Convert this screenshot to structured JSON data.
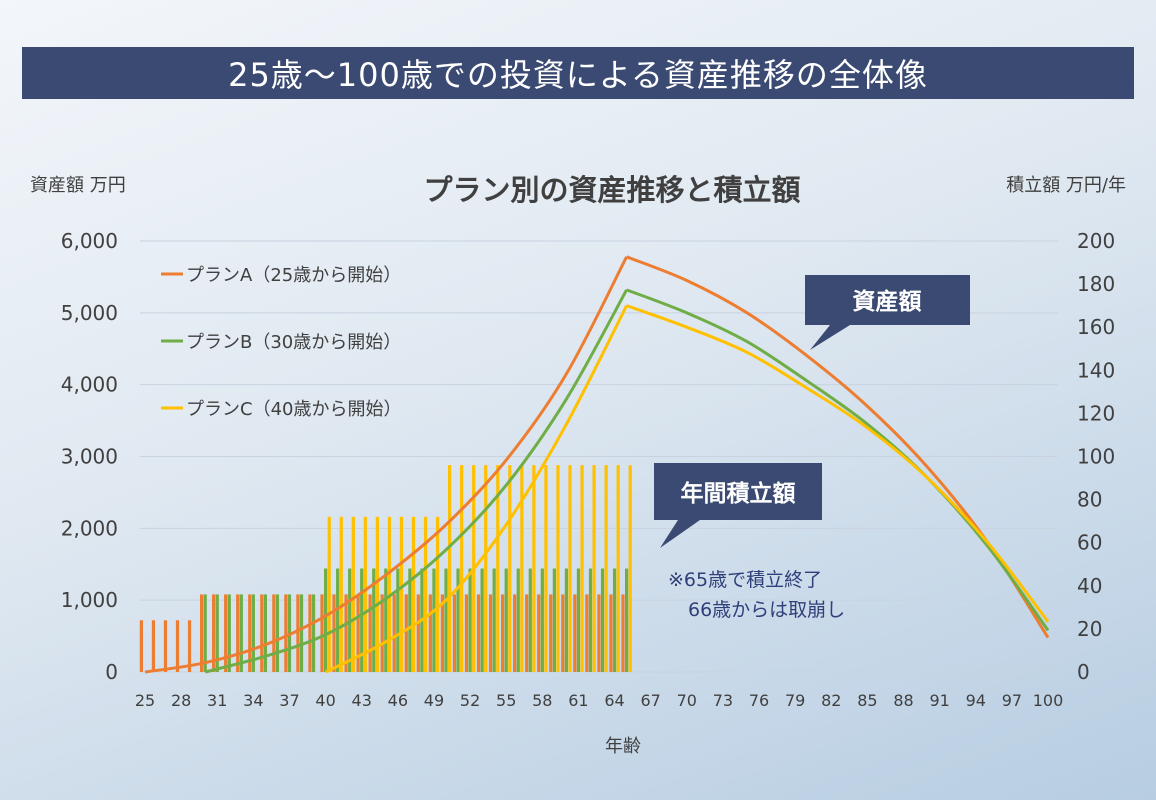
{
  "header": {
    "title": "25歳〜100歳での投資による資産推移の全体像"
  },
  "chart_data": {
    "type": "bar+line",
    "title": "プラン別の資産推移と積立額",
    "ylabel_left": "資産額 万円",
    "ylabel_right": "積立額 万円/年",
    "xlabel": "年齢",
    "ylim_left": [
      0,
      6000
    ],
    "ylim_right": [
      0,
      200
    ],
    "yticks_left": [
      "0",
      "1,000",
      "2,000",
      "3,000",
      "4,000",
      "5,000",
      "6,000"
    ],
    "yticks_right": [
      "0",
      "20",
      "40",
      "60",
      "80",
      "100",
      "120",
      "140",
      "160",
      "180",
      "200"
    ],
    "x_ticks": [
      25,
      28,
      31,
      34,
      37,
      40,
      43,
      46,
      49,
      52,
      55,
      58,
      61,
      64,
      67,
      70,
      73,
      76,
      79,
      82,
      85,
      88,
      91,
      94,
      97,
      100
    ],
    "legend_position": "top-left",
    "series": [
      {
        "name": "プランA（25歳から開始）",
        "color": "#ed7d31",
        "contributions": [
          {
            "from_age": 25,
            "to_age": 29,
            "amount": 24
          },
          {
            "from_age": 30,
            "to_age": 39,
            "amount": 36
          },
          {
            "from_age": 40,
            "to_age": 65,
            "amount": 36
          }
        ],
        "assets": [
          {
            "age": 25,
            "value": 0
          },
          {
            "age": 30,
            "value": 130
          },
          {
            "age": 35,
            "value": 380
          },
          {
            "age": 40,
            "value": 780
          },
          {
            "age": 45,
            "value": 1350
          },
          {
            "age": 50,
            "value": 2050
          },
          {
            "age": 55,
            "value": 2950
          },
          {
            "age": 60,
            "value": 4150
          },
          {
            "age": 65,
            "value": 5780
          },
          {
            "age": 70,
            "value": 5450
          },
          {
            "age": 75,
            "value": 5000
          },
          {
            "age": 80,
            "value": 4400
          },
          {
            "age": 85,
            "value": 3700
          },
          {
            "age": 90,
            "value": 2850
          },
          {
            "age": 95,
            "value": 1800
          },
          {
            "age": 100,
            "value": 480
          }
        ]
      },
      {
        "name": "プランB（30歳から開始）",
        "color": "#70ad47",
        "contributions": [
          {
            "from_age": 30,
            "to_age": 39,
            "amount": 36
          },
          {
            "from_age": 40,
            "to_age": 65,
            "amount": 48
          }
        ],
        "assets": [
          {
            "age": 30,
            "value": 0
          },
          {
            "age": 35,
            "value": 220
          },
          {
            "age": 40,
            "value": 520
          },
          {
            "age": 45,
            "value": 1020
          },
          {
            "age": 50,
            "value": 1700
          },
          {
            "age": 55,
            "value": 2600
          },
          {
            "age": 60,
            "value": 3800
          },
          {
            "age": 65,
            "value": 5320
          },
          {
            "age": 70,
            "value": 5000
          },
          {
            "age": 75,
            "value": 4600
          },
          {
            "age": 80,
            "value": 4050
          },
          {
            "age": 85,
            "value": 3450
          },
          {
            "age": 90,
            "value": 2700
          },
          {
            "age": 95,
            "value": 1750
          },
          {
            "age": 100,
            "value": 580
          }
        ]
      },
      {
        "name": "プランC（40歳から開始）",
        "color": "#ffc000",
        "contributions": [
          {
            "from_age": 40,
            "to_age": 49,
            "amount": 72
          },
          {
            "from_age": 50,
            "to_age": 65,
            "amount": 96
          }
        ],
        "assets": [
          {
            "age": 40,
            "value": 0
          },
          {
            "age": 45,
            "value": 420
          },
          {
            "age": 50,
            "value": 1000
          },
          {
            "age": 55,
            "value": 2050
          },
          {
            "age": 60,
            "value": 3450
          },
          {
            "age": 65,
            "value": 5100
          },
          {
            "age": 70,
            "value": 4800
          },
          {
            "age": 75,
            "value": 4450
          },
          {
            "age": 80,
            "value": 3950
          },
          {
            "age": 85,
            "value": 3400
          },
          {
            "age": 90,
            "value": 2700
          },
          {
            "age": 95,
            "value": 1800
          },
          {
            "age": 100,
            "value": 700
          }
        ]
      }
    ],
    "annotations": {
      "asset_callout": "資産額",
      "contribution_callout": "年間積立額",
      "note_line1": "※65歳で積立終了",
      "note_line2": "66歳からは取崩し"
    }
  }
}
